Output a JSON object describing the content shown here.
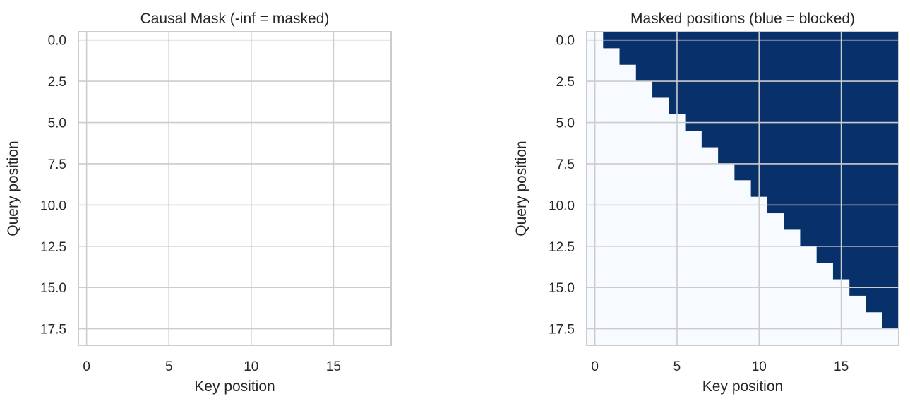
{
  "chart_data": [
    {
      "type": "heatmap",
      "title": "Causal Mask (-inf = masked)",
      "x_label": "Key position",
      "y_label": "Query position",
      "xlim": [
        -0.5,
        18.5
      ],
      "ylim": [
        18.5,
        -0.5
      ],
      "xticks": [
        0,
        5,
        10,
        15
      ],
      "yticks": [
        {
          "value": 0,
          "label": "0.0"
        },
        {
          "value": 2.5,
          "label": "2.5"
        },
        {
          "value": 5,
          "label": "5.0"
        },
        {
          "value": 7.5,
          "label": "7.5"
        },
        {
          "value": 10,
          "label": "10.0"
        },
        {
          "value": 12.5,
          "label": "12.5"
        },
        {
          "value": 15,
          "label": "15.0"
        },
        {
          "value": 17.5,
          "label": "17.5"
        }
      ],
      "grid": true
    },
    {
      "type": "heatmap",
      "title": "Masked positions (blue = blocked)",
      "x_label": "Key position",
      "y_label": "Query position",
      "xlim": [
        -0.5,
        18.5
      ],
      "ylim": [
        18.5,
        -0.5
      ],
      "xticks": [
        0,
        5,
        10,
        15
      ],
      "yticks": [
        {
          "value": 0,
          "label": "0.0"
        },
        {
          "value": 2.5,
          "label": "2.5"
        },
        {
          "value": 5,
          "label": "5.0"
        },
        {
          "value": 7.5,
          "label": "7.5"
        },
        {
          "value": 10,
          "label": "10.0"
        },
        {
          "value": 12.5,
          "label": "12.5"
        },
        {
          "value": 15,
          "label": "15.0"
        },
        {
          "value": 17.5,
          "label": "17.5"
        }
      ],
      "grid": true,
      "vlim": [
        0,
        1
      ],
      "cmap": [
        "#f7fbff",
        "#08306b"
      ],
      "values": [
        [
          0,
          1,
          1,
          1,
          1,
          1,
          1,
          1,
          1,
          1,
          1,
          1,
          1,
          1,
          1,
          1,
          1,
          1,
          1
        ],
        [
          0,
          0,
          1,
          1,
          1,
          1,
          1,
          1,
          1,
          1,
          1,
          1,
          1,
          1,
          1,
          1,
          1,
          1,
          1
        ],
        [
          0,
          0,
          0,
          1,
          1,
          1,
          1,
          1,
          1,
          1,
          1,
          1,
          1,
          1,
          1,
          1,
          1,
          1,
          1
        ],
        [
          0,
          0,
          0,
          0,
          1,
          1,
          1,
          1,
          1,
          1,
          1,
          1,
          1,
          1,
          1,
          1,
          1,
          1,
          1
        ],
        [
          0,
          0,
          0,
          0,
          0,
          1,
          1,
          1,
          1,
          1,
          1,
          1,
          1,
          1,
          1,
          1,
          1,
          1,
          1
        ],
        [
          0,
          0,
          0,
          0,
          0,
          0,
          1,
          1,
          1,
          1,
          1,
          1,
          1,
          1,
          1,
          1,
          1,
          1,
          1
        ],
        [
          0,
          0,
          0,
          0,
          0,
          0,
          0,
          1,
          1,
          1,
          1,
          1,
          1,
          1,
          1,
          1,
          1,
          1,
          1
        ],
        [
          0,
          0,
          0,
          0,
          0,
          0,
          0,
          0,
          1,
          1,
          1,
          1,
          1,
          1,
          1,
          1,
          1,
          1,
          1
        ],
        [
          0,
          0,
          0,
          0,
          0,
          0,
          0,
          0,
          0,
          1,
          1,
          1,
          1,
          1,
          1,
          1,
          1,
          1,
          1
        ],
        [
          0,
          0,
          0,
          0,
          0,
          0,
          0,
          0,
          0,
          0,
          1,
          1,
          1,
          1,
          1,
          1,
          1,
          1,
          1
        ],
        [
          0,
          0,
          0,
          0,
          0,
          0,
          0,
          0,
          0,
          0,
          0,
          1,
          1,
          1,
          1,
          1,
          1,
          1,
          1
        ],
        [
          0,
          0,
          0,
          0,
          0,
          0,
          0,
          0,
          0,
          0,
          0,
          0,
          1,
          1,
          1,
          1,
          1,
          1,
          1
        ],
        [
          0,
          0,
          0,
          0,
          0,
          0,
          0,
          0,
          0,
          0,
          0,
          0,
          0,
          1,
          1,
          1,
          1,
          1,
          1
        ],
        [
          0,
          0,
          0,
          0,
          0,
          0,
          0,
          0,
          0,
          0,
          0,
          0,
          0,
          0,
          1,
          1,
          1,
          1,
          1
        ],
        [
          0,
          0,
          0,
          0,
          0,
          0,
          0,
          0,
          0,
          0,
          0,
          0,
          0,
          0,
          0,
          1,
          1,
          1,
          1
        ],
        [
          0,
          0,
          0,
          0,
          0,
          0,
          0,
          0,
          0,
          0,
          0,
          0,
          0,
          0,
          0,
          0,
          1,
          1,
          1
        ],
        [
          0,
          0,
          0,
          0,
          0,
          0,
          0,
          0,
          0,
          0,
          0,
          0,
          0,
          0,
          0,
          0,
          0,
          1,
          1
        ],
        [
          0,
          0,
          0,
          0,
          0,
          0,
          0,
          0,
          0,
          0,
          0,
          0,
          0,
          0,
          0,
          0,
          0,
          0,
          1
        ],
        [
          0,
          0,
          0,
          0,
          0,
          0,
          0,
          0,
          0,
          0,
          0,
          0,
          0,
          0,
          0,
          0,
          0,
          0,
          0
        ]
      ]
    }
  ]
}
